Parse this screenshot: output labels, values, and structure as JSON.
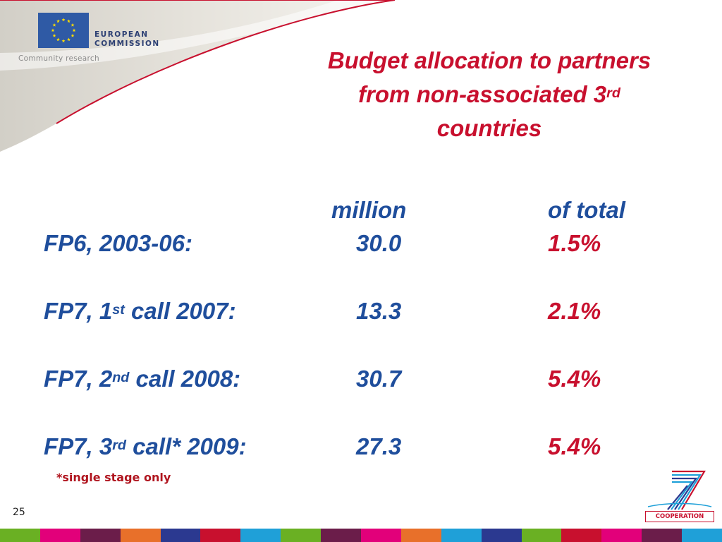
{
  "header": {
    "org_line1": "EUROPEAN",
    "org_line2": "COMMISSION",
    "subtitle": "Community research"
  },
  "title": {
    "line1": "Budget allocation to partners",
    "line2_main": "from non-associated 3",
    "line2_sup": "rd",
    "line3": "countries"
  },
  "table": {
    "col_million": "million",
    "col_total": "of total",
    "rows": [
      {
        "label": "FP6, 2003-06:",
        "label_sup": "",
        "label_rest": "",
        "million": "30.0",
        "share": "1.5%"
      },
      {
        "label": "FP7, 1",
        "label_sup": "st",
        "label_rest": " call 2007:",
        "million": "13.3",
        "share": "2.1%"
      },
      {
        "label": "FP7, 2",
        "label_sup": "nd",
        "label_rest": " call 2008:",
        "million": "30.7",
        "share": "5.4%"
      },
      {
        "label": "FP7, 3",
        "label_sup": "rd",
        "label_rest": " call* 2009:",
        "million": "27.3",
        "share": "5.4%"
      }
    ]
  },
  "footnote": "*single stage only",
  "page_number": "25",
  "logo_text": "COOPERATION",
  "colors": {
    "title_red": "#c8102e",
    "text_blue": "#1f4e9c",
    "eu_blue": "#2f5aa5",
    "eu_star": "#ffdd00",
    "footer_bar": [
      "#6ab023",
      "#e2007a",
      "#6b1d4a",
      "#e8702a",
      "#2b3990",
      "#c8102e",
      "#1fa0d8",
      "#6ab023",
      "#6b1d4a",
      "#e2007a",
      "#e8702a",
      "#1fa0d8",
      "#2b3990",
      "#6ab023",
      "#c8102e",
      "#e2007a",
      "#6b1d4a",
      "#1fa0d8"
    ]
  }
}
